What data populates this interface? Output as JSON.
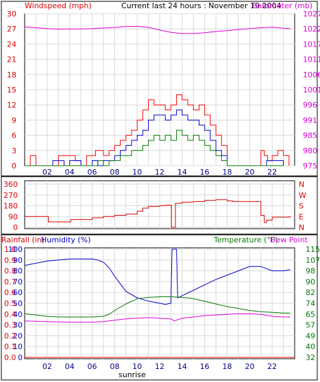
{
  "chart_data": [
    {
      "type": "line",
      "title": "Current last 24 hours : November 19 2004",
      "y_left_label": "Windspeed (mph)",
      "y_right_label": "Barometer (mb)",
      "x_ticks": [
        "02",
        "04",
        "06",
        "08",
        "10",
        "12",
        "14",
        "16",
        "18",
        "20",
        "22"
      ],
      "x_range": [
        0,
        24
      ],
      "y_left_ticks": [
        0,
        3,
        6,
        9,
        12,
        15,
        18,
        21,
        24,
        27,
        30
      ],
      "y_left_range": [
        0,
        30
      ],
      "y_right_ticks": [
        975,
        980,
        985,
        991,
        996,
        1001,
        1006,
        1011,
        1017,
        1022,
        1027
      ],
      "y_right_range": [
        975,
        1027
      ],
      "grid": true,
      "series": [
        {
          "name": "",
          "axis": "right",
          "color": "#dd00dd",
          "x": [
            0,
            1,
            2,
            3,
            4,
            5,
            6,
            7,
            8,
            9,
            10,
            11,
            12,
            13,
            14,
            15,
            16,
            17,
            18,
            19,
            20,
            21,
            22,
            23,
            23.6
          ],
          "y": [
            1022.5,
            1022.2,
            1021.9,
            1021.7,
            1021.8,
            1021.8,
            1021.9,
            1022.1,
            1022.3,
            1022.6,
            1022.7,
            1022.3,
            1021.4,
            1020.6,
            1020.2,
            1020.2,
            1020.5,
            1020.9,
            1021.2,
            1021.6,
            1021.9,
            1022.2,
            1022.4,
            1022.0,
            1021.9
          ]
        },
        {
          "name": "",
          "axis": "left",
          "color": "#ff0000",
          "x": [
            0,
            0.4,
            0.5,
            1,
            2,
            3,
            3.5,
            4,
            4.5,
            5,
            5.5,
            6,
            6.3,
            6.7,
            7,
            7.5,
            8,
            8.5,
            9,
            9.5,
            10,
            10.5,
            11,
            11.5,
            12,
            12.5,
            13,
            13.5,
            14,
            14.5,
            15,
            15.5,
            16,
            16.5,
            17,
            17.5,
            18,
            19,
            20,
            20.8,
            21,
            21.3,
            21.6,
            22,
            22.5,
            23,
            23.5
          ],
          "y": [
            0,
            0,
            2,
            0,
            0,
            2,
            2,
            2,
            1,
            0,
            2,
            2,
            3,
            3,
            2,
            3,
            4,
            5,
            6,
            7,
            9,
            11,
            13,
            12,
            12,
            11,
            12,
            14,
            13,
            12,
            11,
            12,
            10,
            8,
            6,
            4,
            0,
            0,
            0,
            0,
            3,
            2,
            1,
            2,
            3,
            2,
            0
          ]
        },
        {
          "name": "",
          "axis": "left",
          "color": "#0000cc",
          "x": [
            0,
            1,
            2,
            2.5,
            3,
            3.5,
            4,
            5,
            6,
            6.5,
            7,
            7.5,
            8,
            8.5,
            9,
            9.5,
            10,
            10.5,
            11,
            11.5,
            12,
            12.5,
            13,
            13.5,
            14,
            14.5,
            15,
            15.5,
            16,
            16.5,
            17,
            17.5,
            18,
            21,
            21.5,
            22,
            22.5,
            23
          ],
          "y": [
            0,
            0,
            0,
            1,
            1,
            0,
            1,
            0,
            1,
            0,
            1,
            1,
            2,
            3,
            4,
            5,
            6,
            7,
            9,
            10,
            10,
            9,
            10,
            11,
            10,
            9,
            9,
            8,
            7,
            5,
            3,
            2,
            0,
            0,
            1,
            1,
            1,
            0
          ]
        },
        {
          "name": "",
          "axis": "left",
          "color": "#007700",
          "x": [
            0,
            2,
            3,
            4,
            5,
            6,
            6.5,
            7,
            7.5,
            8,
            8.5,
            9,
            9.5,
            10,
            10.5,
            11,
            11.5,
            12,
            12.5,
            13,
            13.5,
            14,
            14.5,
            15,
            15.5,
            16,
            16.5,
            17,
            17.5,
            18,
            22,
            23
          ],
          "y": [
            0,
            0,
            0,
            0,
            0,
            0,
            1,
            0,
            1,
            1,
            2,
            2,
            3,
            3,
            4,
            5,
            6,
            5,
            6,
            5,
            7,
            6,
            5,
            6,
            5,
            4,
            3,
            2,
            1,
            0,
            0,
            0
          ]
        }
      ]
    },
    {
      "type": "line",
      "y_left_ticks": [
        0,
        90,
        180,
        270,
        360
      ],
      "y_left_range": [
        0,
        360
      ],
      "y_right_ticks": [
        "N",
        "W",
        "S",
        "E",
        "N"
      ],
      "x_range": [
        0,
        24
      ],
      "grid": true,
      "series": [
        {
          "name": "",
          "axis": "left",
          "color": "#dd0000",
          "x": [
            0,
            2,
            2.1,
            4,
            4.1,
            6,
            7,
            8,
            9,
            10,
            10.5,
            11,
            12,
            12.6,
            13,
            13.05,
            13.35,
            13.4,
            14,
            15,
            16,
            17,
            18,
            18.5,
            19,
            20,
            20.6,
            21,
            21.3,
            21.5,
            22,
            23,
            23.6
          ],
          "y": [
            90,
            90,
            45,
            45,
            65,
            80,
            90,
            100,
            110,
            135,
            160,
            175,
            180,
            185,
            180,
            0,
            0,
            200,
            210,
            215,
            225,
            230,
            220,
            215,
            215,
            215,
            215,
            100,
            40,
            60,
            85,
            85,
            95
          ]
        }
      ]
    },
    {
      "type": "line",
      "labels": [
        "Rainfall (in)",
        "Humidity (%)",
        "Temperature (°F)",
        "Dew Point"
      ],
      "y_rain_ticks": [
        "0.0",
        "0.1",
        "0.2",
        "0.3",
        "0.4",
        "0.5",
        "0.6",
        "0.7",
        "0.8",
        "0.9",
        "1.0"
      ],
      "y_humidity_ticks": [
        0,
        10,
        20,
        30,
        40,
        50,
        60,
        70,
        80,
        90,
        100
      ],
      "y_right_ticks": [
        32,
        40,
        49,
        57,
        65,
        74,
        82,
        90,
        98,
        107,
        115
      ],
      "y_right_range": [
        32,
        115
      ],
      "x_ticks": [
        "02",
        "04",
        "06",
        "08",
        "10",
        "12",
        "14",
        "16",
        "18",
        "20",
        "22"
      ],
      "x_label": "sunrise",
      "x_range": [
        0,
        24
      ],
      "grid": true,
      "series": [
        {
          "name": "Humidity (%)",
          "axis": "humidity",
          "color": "#0000cc",
          "x": [
            0,
            0.5,
            1,
            2,
            3,
            4,
            5,
            6,
            6.5,
            7,
            7.5,
            8,
            8.5,
            9,
            10,
            11,
            12,
            12.5,
            13,
            13.1,
            13.2,
            13.3,
            13.4,
            13.5,
            13.6,
            14,
            15,
            16,
            17,
            18,
            19,
            20,
            21,
            22,
            23,
            23.6
          ],
          "y": [
            85,
            86,
            87,
            89,
            90,
            91,
            91,
            91,
            90,
            88,
            83,
            75,
            68,
            61,
            55,
            52,
            50,
            49,
            50,
            100,
            100,
            100,
            100,
            100,
            55,
            57,
            62,
            67,
            72,
            76,
            80,
            84,
            84,
            80,
            80,
            81
          ]
        },
        {
          "name": "Temperature (°F)",
          "axis": "right",
          "color": "#007700",
          "x": [
            0,
            1,
            2,
            3,
            4,
            5,
            6,
            7,
            7.5,
            8,
            9,
            10,
            11,
            12,
            13,
            14,
            15,
            16,
            17,
            18,
            19,
            20,
            21,
            22,
            23,
            23.6
          ],
          "y": [
            65.5,
            64.5,
            63.5,
            63,
            63,
            63,
            63,
            63.5,
            65,
            68,
            73,
            77,
            78,
            78.5,
            78.5,
            78,
            77,
            75,
            73,
            71,
            69.5,
            68,
            67,
            66.5,
            66,
            66
          ]
        },
        {
          "name": "Dew Point",
          "axis": "right",
          "color": "#dd00dd",
          "x": [
            0,
            2,
            4,
            6,
            7,
            8,
            9,
            10,
            11,
            12,
            13,
            13.3,
            14,
            15,
            16,
            17,
            18,
            19,
            20,
            21,
            22,
            23,
            23.6
          ],
          "y": [
            60,
            59.5,
            59,
            59,
            59.5,
            60.5,
            61.5,
            62,
            62.5,
            62,
            61.5,
            60,
            62,
            63,
            64,
            64.5,
            65,
            65.5,
            65.5,
            65,
            63.5,
            63,
            63
          ]
        },
        {
          "name": "Rainfall (in)",
          "axis": "rain",
          "color": "#ff0000",
          "x": [
            0,
            24
          ],
          "y": [
            0,
            0
          ]
        }
      ]
    }
  ]
}
